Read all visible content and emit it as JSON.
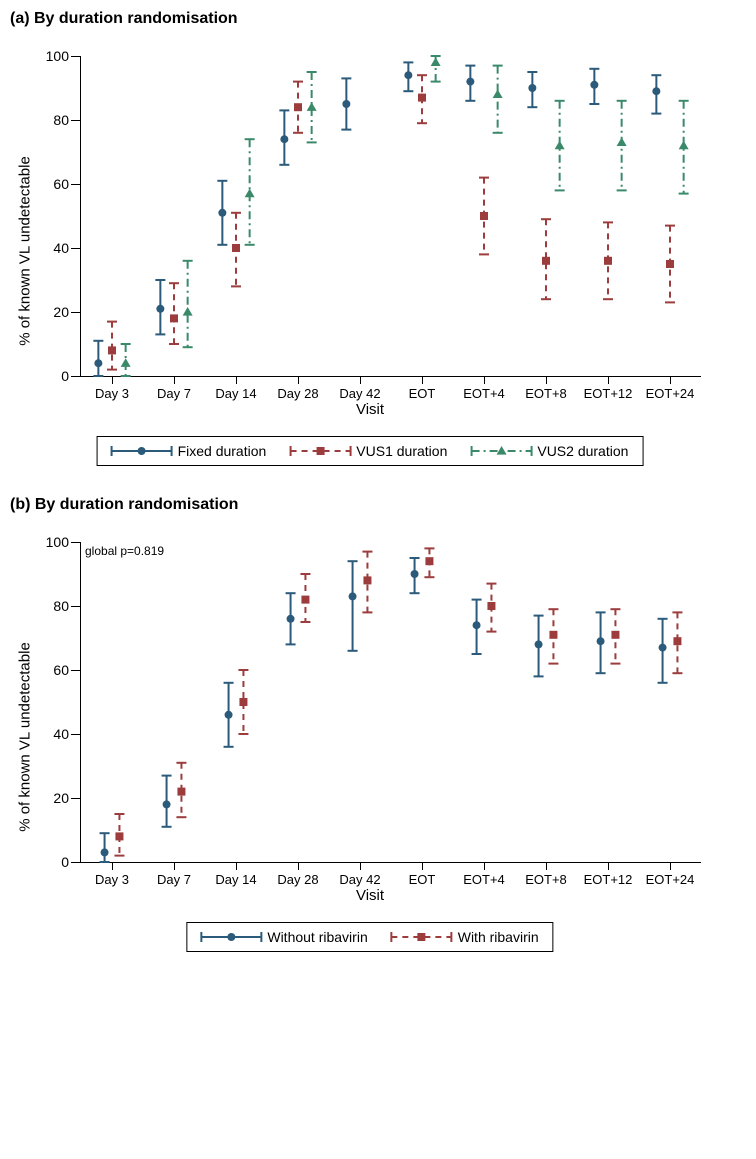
{
  "background_color": "#ffffff",
  "axis_color": "#000000",
  "panels": {
    "a": {
      "title": "(a) By duration randomisation",
      "ylabel": "% of known VL undetectable",
      "xlabel": "Visit",
      "ylim": [
        0,
        100
      ],
      "ytick_step": 20,
      "categories": [
        "Day 3",
        "Day 7",
        "Day 14",
        "Day 28",
        "Day 42",
        "EOT",
        "EOT+4",
        "EOT+8",
        "EOT+12",
        "EOT+24"
      ],
      "series": [
        {
          "name": "Fixed duration",
          "color": "#2b5a7a",
          "marker": "circle",
          "dash": "solid",
          "offset": -0.22,
          "points": [
            {
              "x": 0,
              "y": 4,
              "lo": 0,
              "hi": 11
            },
            {
              "x": 1,
              "y": 21,
              "lo": 13,
              "hi": 30
            },
            {
              "x": 2,
              "y": 51,
              "lo": 41,
              "hi": 61
            },
            {
              "x": 3,
              "y": 74,
              "lo": 66,
              "hi": 83
            },
            {
              "x": 4,
              "y": 85,
              "lo": 77,
              "hi": 93
            },
            {
              "x": 5,
              "y": 94,
              "lo": 89,
              "hi": 98
            },
            {
              "x": 6,
              "y": 92,
              "lo": 86,
              "hi": 97
            },
            {
              "x": 7,
              "y": 90,
              "lo": 84,
              "hi": 95
            },
            {
              "x": 8,
              "y": 91,
              "lo": 85,
              "hi": 96
            },
            {
              "x": 9,
              "y": 89,
              "lo": 82,
              "hi": 94
            }
          ]
        },
        {
          "name": "VUS1 duration",
          "color": "#9c3c3c",
          "marker": "square",
          "dash": "dash",
          "offset": 0,
          "points": [
            {
              "x": 0,
              "y": 8,
              "lo": 2,
              "hi": 17
            },
            {
              "x": 1,
              "y": 18,
              "lo": 10,
              "hi": 29
            },
            {
              "x": 2,
              "y": 40,
              "lo": 28,
              "hi": 51
            },
            {
              "x": 3,
              "y": 84,
              "lo": 76,
              "hi": 92
            },
            {
              "x": 5,
              "y": 87,
              "lo": 79,
              "hi": 94
            },
            {
              "x": 6,
              "y": 50,
              "lo": 38,
              "hi": 62
            },
            {
              "x": 7,
              "y": 36,
              "lo": 24,
              "hi": 49
            },
            {
              "x": 8,
              "y": 36,
              "lo": 24,
              "hi": 48
            },
            {
              "x": 9,
              "y": 35,
              "lo": 23,
              "hi": 47
            }
          ]
        },
        {
          "name": "VUS2 duration",
          "color": "#3a8a6a",
          "marker": "triangle",
          "dash": "dashdot",
          "offset": 0.22,
          "points": [
            {
              "x": 0,
              "y": 4,
              "lo": 0,
              "hi": 10
            },
            {
              "x": 1,
              "y": 20,
              "lo": 9,
              "hi": 36
            },
            {
              "x": 2,
              "y": 57,
              "lo": 41,
              "hi": 74
            },
            {
              "x": 3,
              "y": 84,
              "lo": 73,
              "hi": 95
            },
            {
              "x": 5,
              "y": 98,
              "lo": 92,
              "hi": 100
            },
            {
              "x": 6,
              "y": 88,
              "lo": 76,
              "hi": 97
            },
            {
              "x": 7,
              "y": 72,
              "lo": 58,
              "hi": 86
            },
            {
              "x": 8,
              "y": 73,
              "lo": 58,
              "hi": 86
            },
            {
              "x": 9,
              "y": 72,
              "lo": 57,
              "hi": 86
            }
          ]
        }
      ]
    },
    "b": {
      "title": "(b) By duration randomisation",
      "ylabel": "% of known VL undetectable",
      "xlabel": "Visit",
      "annotation": "global p=0.819",
      "ylim": [
        0,
        100
      ],
      "ytick_step": 20,
      "categories": [
        "Day 3",
        "Day 7",
        "Day 14",
        "Day 28",
        "Day 42",
        "EOT",
        "EOT+4",
        "EOT+8",
        "EOT+12",
        "EOT+24"
      ],
      "series": [
        {
          "name": "Without ribavirin",
          "color": "#2b5a7a",
          "marker": "circle",
          "dash": "solid",
          "offset": -0.12,
          "points": [
            {
              "x": 0,
              "y": 3,
              "lo": 0,
              "hi": 9
            },
            {
              "x": 1,
              "y": 18,
              "lo": 11,
              "hi": 27
            },
            {
              "x": 2,
              "y": 46,
              "lo": 36,
              "hi": 56
            },
            {
              "x": 3,
              "y": 76,
              "lo": 68,
              "hi": 84
            },
            {
              "x": 4,
              "y": 83,
              "lo": 66,
              "hi": 94
            },
            {
              "x": 5,
              "y": 90,
              "lo": 84,
              "hi": 95
            },
            {
              "x": 6,
              "y": 74,
              "lo": 65,
              "hi": 82
            },
            {
              "x": 7,
              "y": 68,
              "lo": 58,
              "hi": 77
            },
            {
              "x": 8,
              "y": 69,
              "lo": 59,
              "hi": 78
            },
            {
              "x": 9,
              "y": 67,
              "lo": 56,
              "hi": 76
            }
          ]
        },
        {
          "name": "With ribavirin",
          "color": "#9c3c3c",
          "marker": "square",
          "dash": "dash",
          "offset": 0.12,
          "points": [
            {
              "x": 0,
              "y": 8,
              "lo": 2,
              "hi": 15
            },
            {
              "x": 1,
              "y": 22,
              "lo": 14,
              "hi": 31
            },
            {
              "x": 2,
              "y": 50,
              "lo": 40,
              "hi": 60
            },
            {
              "x": 3,
              "y": 82,
              "lo": 75,
              "hi": 90
            },
            {
              "x": 4,
              "y": 88,
              "lo": 78,
              "hi": 97
            },
            {
              "x": 5,
              "y": 94,
              "lo": 89,
              "hi": 98
            },
            {
              "x": 6,
              "y": 80,
              "lo": 72,
              "hi": 87
            },
            {
              "x": 7,
              "y": 71,
              "lo": 62,
              "hi": 79
            },
            {
              "x": 8,
              "y": 71,
              "lo": 62,
              "hi": 79
            },
            {
              "x": 9,
              "y": 69,
              "lo": 59,
              "hi": 78
            }
          ]
        }
      ]
    }
  },
  "marker_size": 8,
  "error_cap_width": 10,
  "label_fontsize": 15,
  "tick_fontsize": 14
}
